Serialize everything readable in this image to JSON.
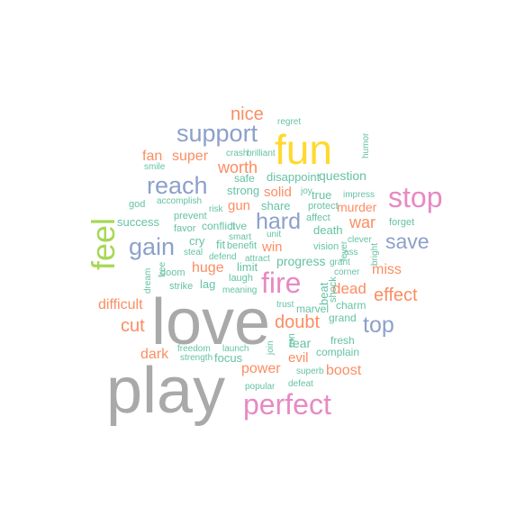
{
  "palette": {
    "gray": "#a9a9a9",
    "pink": "#e78ac3",
    "blue": "#8da0cb",
    "orange": "#fc8d62",
    "teal": "#66c2a5",
    "yellow": "#ffd92f",
    "green": "#a6d854"
  },
  "words": [
    {
      "text": "play",
      "color": "gray",
      "weight": 100
    },
    {
      "text": "love",
      "color": "gray",
      "weight": 95
    },
    {
      "text": "fun",
      "color": "yellow",
      "weight": 60
    },
    {
      "text": "perfect",
      "color": "pink",
      "weight": 50
    },
    {
      "text": "stop",
      "color": "pink",
      "weight": 48
    },
    {
      "text": "fire",
      "color": "pink",
      "weight": 46
    },
    {
      "text": "feel",
      "color": "green",
      "weight": 46
    },
    {
      "text": "support",
      "color": "blue",
      "weight": 44
    },
    {
      "text": "reach",
      "color": "blue",
      "weight": 44
    },
    {
      "text": "gain",
      "color": "blue",
      "weight": 42
    },
    {
      "text": "hard",
      "color": "blue",
      "weight": 40
    },
    {
      "text": "save",
      "color": "blue",
      "weight": 38
    },
    {
      "text": "top",
      "color": "blue",
      "weight": 38
    },
    {
      "text": "nice",
      "color": "orange",
      "weight": 32
    },
    {
      "text": "effect",
      "color": "orange",
      "weight": 32
    },
    {
      "text": "doubt",
      "color": "orange",
      "weight": 32
    },
    {
      "text": "cut",
      "color": "orange",
      "weight": 32
    },
    {
      "text": "worth",
      "color": "orange",
      "weight": 28
    },
    {
      "text": "war",
      "color": "orange",
      "weight": 28
    },
    {
      "text": "dead",
      "color": "orange",
      "weight": 28
    },
    {
      "text": "boost",
      "color": "orange",
      "weight": 26
    },
    {
      "text": "power",
      "color": "orange",
      "weight": 26
    },
    {
      "text": "super",
      "color": "orange",
      "weight": 24
    },
    {
      "text": "fan",
      "color": "orange",
      "weight": 24
    },
    {
      "text": "huge",
      "color": "orange",
      "weight": 24
    },
    {
      "text": "miss",
      "color": "orange",
      "weight": 24
    },
    {
      "text": "difficult",
      "color": "orange",
      "weight": 24
    },
    {
      "text": "dark",
      "color": "orange",
      "weight": 24
    },
    {
      "text": "evil",
      "color": "orange",
      "weight": 24
    },
    {
      "text": "gun",
      "color": "orange",
      "weight": 22
    },
    {
      "text": "win",
      "color": "orange",
      "weight": 22
    },
    {
      "text": "solid",
      "color": "orange",
      "weight": 22
    },
    {
      "text": "murder",
      "color": "orange",
      "weight": 22
    },
    {
      "text": "question",
      "color": "teal",
      "weight": 22
    },
    {
      "text": "fear",
      "color": "teal",
      "weight": 22
    },
    {
      "text": "progress",
      "color": "teal",
      "weight": 20
    },
    {
      "text": "focus",
      "color": "teal",
      "weight": 20
    },
    {
      "text": "strong",
      "color": "teal",
      "weight": 20
    },
    {
      "text": "share",
      "color": "teal",
      "weight": 20
    },
    {
      "text": "death",
      "color": "teal",
      "weight": 20
    },
    {
      "text": "disappoint",
      "color": "teal",
      "weight": 18
    },
    {
      "text": "success",
      "color": "teal",
      "weight": 18
    },
    {
      "text": "lag",
      "color": "teal",
      "weight": 18
    },
    {
      "text": "cry",
      "color": "teal",
      "weight": 18
    },
    {
      "text": "fit",
      "color": "teal",
      "weight": 18
    },
    {
      "text": "true",
      "color": "teal",
      "weight": 18
    },
    {
      "text": "beat",
      "color": "teal",
      "weight": 18
    },
    {
      "text": "fresh",
      "color": "teal",
      "weight": 16
    },
    {
      "text": "complain",
      "color": "teal",
      "weight": 16
    },
    {
      "text": "charm",
      "color": "teal",
      "weight": 16
    },
    {
      "text": "grand",
      "color": "teal",
      "weight": 16
    },
    {
      "text": "limit",
      "color": "teal",
      "weight": 16
    },
    {
      "text": "marvel",
      "color": "teal",
      "weight": 16
    },
    {
      "text": "conflict",
      "color": "teal",
      "weight": 16
    },
    {
      "text": "live",
      "color": "teal",
      "weight": 16
    },
    {
      "text": "safe",
      "color": "teal",
      "weight": 16
    },
    {
      "text": "favor",
      "color": "teal",
      "weight": 14
    },
    {
      "text": "prevent",
      "color": "teal",
      "weight": 14
    },
    {
      "text": "laugh",
      "color": "teal",
      "weight": 14
    },
    {
      "text": "vision",
      "color": "teal",
      "weight": 14
    },
    {
      "text": "affect",
      "color": "teal",
      "weight": 14
    },
    {
      "text": "forget",
      "color": "teal",
      "weight": 14
    },
    {
      "text": "doom",
      "color": "teal",
      "weight": 14
    },
    {
      "text": "strike",
      "color": "teal",
      "weight": 14
    },
    {
      "text": "god",
      "color": "teal",
      "weight": 14
    },
    {
      "text": "benefit",
      "color": "teal",
      "weight": 14
    },
    {
      "text": "protect",
      "color": "teal",
      "weight": 14
    },
    {
      "text": "shock",
      "color": "teal",
      "weight": 14
    },
    {
      "text": "run",
      "color": "teal",
      "weight": 14
    },
    {
      "text": "accomplish",
      "color": "teal",
      "weight": 12
    },
    {
      "text": "smile",
      "color": "teal",
      "weight": 12
    },
    {
      "text": "brilliant",
      "color": "teal",
      "weight": 12
    },
    {
      "text": "crash",
      "color": "teal",
      "weight": 12
    },
    {
      "text": "regret",
      "color": "teal",
      "weight": 12
    },
    {
      "text": "humor",
      "color": "teal",
      "weight": 12
    },
    {
      "text": "joy",
      "color": "teal",
      "weight": 12
    },
    {
      "text": "impress",
      "color": "teal",
      "weight": 12
    },
    {
      "text": "risk",
      "color": "teal",
      "weight": 12
    },
    {
      "text": "smart",
      "color": "teal",
      "weight": 12
    },
    {
      "text": "unit",
      "color": "teal",
      "weight": 12
    },
    {
      "text": "clever",
      "color": "teal",
      "weight": 12
    },
    {
      "text": "ass",
      "color": "teal",
      "weight": 12
    },
    {
      "text": "bright",
      "color": "teal",
      "weight": 12
    },
    {
      "text": "grant",
      "color": "teal",
      "weight": 12
    },
    {
      "text": "corner",
      "color": "teal",
      "weight": 12
    },
    {
      "text": "fever",
      "color": "teal",
      "weight": 12
    },
    {
      "text": "steal",
      "color": "teal",
      "weight": 12
    },
    {
      "text": "defend",
      "color": "teal",
      "weight": 12
    },
    {
      "text": "attract",
      "color": "teal",
      "weight": 12
    },
    {
      "text": "free",
      "color": "teal",
      "weight": 12
    },
    {
      "text": "dream",
      "color": "teal",
      "weight": 12
    },
    {
      "text": "meaning",
      "color": "teal",
      "weight": 12
    },
    {
      "text": "trust",
      "color": "teal",
      "weight": 12
    },
    {
      "text": "freedom",
      "color": "teal",
      "weight": 12
    },
    {
      "text": "launch",
      "color": "teal",
      "weight": 12
    },
    {
      "text": "strength",
      "color": "teal",
      "weight": 12
    },
    {
      "text": "join",
      "color": "teal",
      "weight": 12
    },
    {
      "text": "superb",
      "color": "teal",
      "weight": 12
    },
    {
      "text": "popular",
      "color": "teal",
      "weight": 12
    },
    {
      "text": "defeat",
      "color": "teal",
      "weight": 12
    }
  ]
}
